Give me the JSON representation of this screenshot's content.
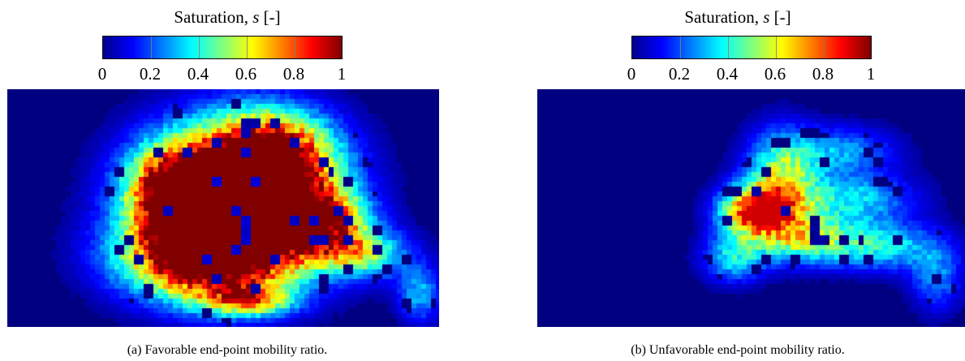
{
  "figure": {
    "colorbar": {
      "title_text": "Saturation, ",
      "title_symbol": "s",
      "title_unit": " [-]",
      "ticks": [
        "0",
        "0.2",
        "0.4",
        "0.6",
        "0.8",
        "1"
      ]
    },
    "colors": {
      "background": "#00008f",
      "colormap": "jet"
    }
  },
  "chart_data": [
    {
      "type": "heatmap",
      "title": "",
      "caption": "(a) Favorable end-point mobility ratio.",
      "colorbar_label": "Saturation, s [-]",
      "colorbar_range": [
        0,
        1
      ],
      "colorbar_ticks": [
        0,
        0.2,
        0.4,
        0.6,
        0.8,
        1
      ],
      "colormap": "jet",
      "description_values": {
        "max_saturation": 1.0,
        "background_saturation": 0.0
      }
    },
    {
      "type": "heatmap",
      "title": "",
      "caption": "(b) Unfavorable end-point mobility ratio.",
      "colorbar_label": "Saturation, s [-]",
      "colorbar_range": [
        0,
        1
      ],
      "colorbar_ticks": [
        0,
        0.2,
        0.4,
        0.6,
        0.8,
        1
      ],
      "colormap": "jet",
      "description_values": {
        "max_saturation": 0.9,
        "background_saturation": 0.0
      }
    }
  ]
}
